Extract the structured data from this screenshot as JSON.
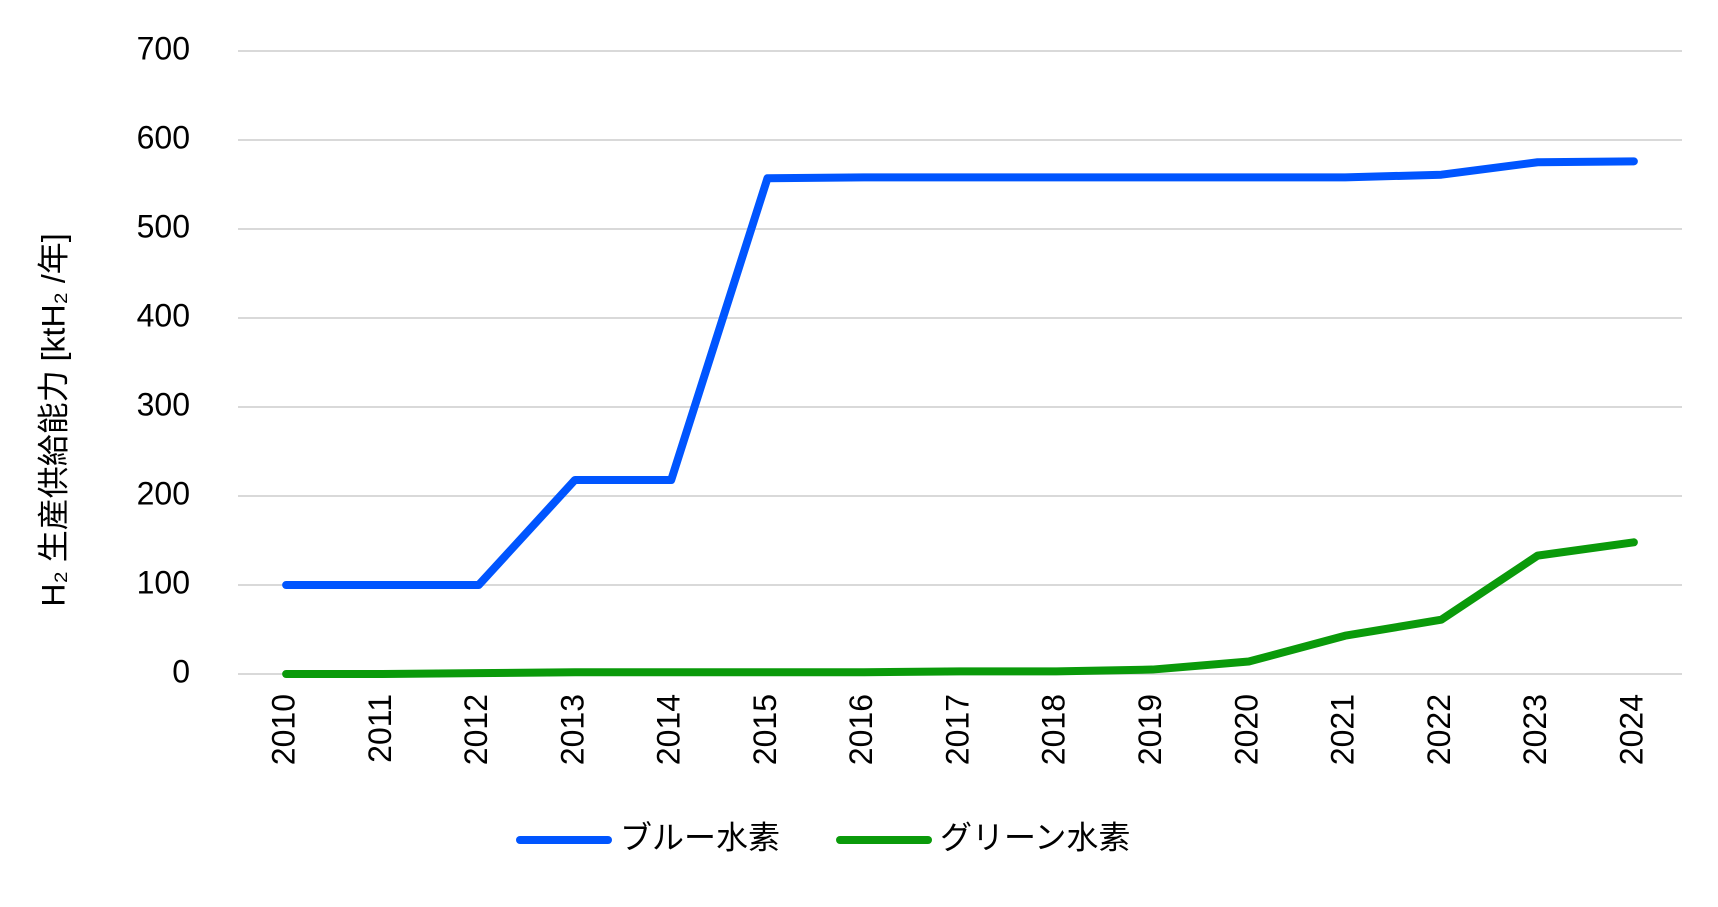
{
  "chart_data": {
    "type": "line",
    "y_label": "H₂ 生産供給能力 [ktH₂ /年]",
    "categories": [
      "2010",
      "2011",
      "2012",
      "2013",
      "2014",
      "2015",
      "2016",
      "2017",
      "2018",
      "2019",
      "2020",
      "2021",
      "2022",
      "2023",
      "2024"
    ],
    "series": [
      {
        "name": "ブルー水素",
        "color": "#0055ff",
        "values": [
          100,
          100,
          100,
          218,
          218,
          557,
          558,
          558,
          558,
          558,
          558,
          558,
          561,
          575,
          576
        ]
      },
      {
        "name": "グリーン水素",
        "color": "#0a9a0a",
        "values": [
          0,
          0,
          1,
          2,
          2,
          2,
          2,
          3,
          3,
          5,
          14,
          43,
          61,
          133,
          148
        ]
      }
    ],
    "ylim": [
      0,
      700
    ],
    "yticks": [
      0,
      100,
      200,
      300,
      400,
      500,
      600,
      700
    ],
    "grid": true,
    "legend": "bottom"
  }
}
